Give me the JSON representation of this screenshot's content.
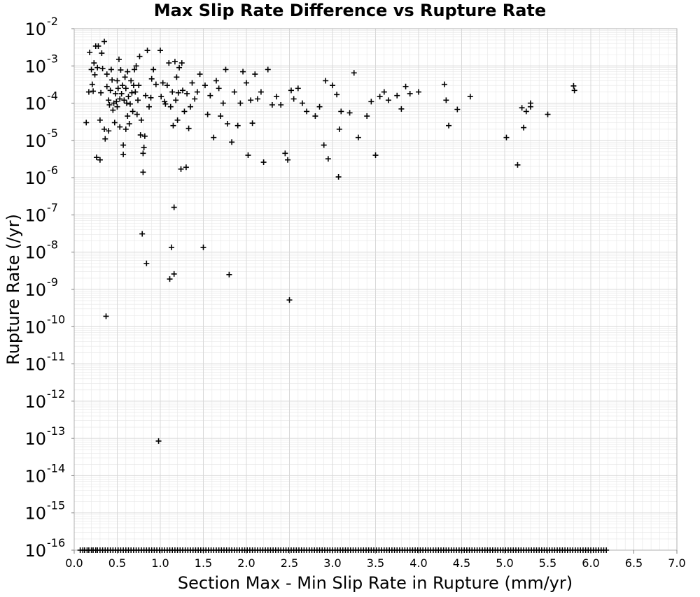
{
  "chart_data": {
    "type": "scatter",
    "title": "Max Slip Rate Difference vs Rupture Rate",
    "xlabel": "Section Max - Min Slip Rate in Rupture (mm/yr)",
    "ylabel": "Rupture Rate (/yr)",
    "x_scale": "linear",
    "y_scale": "log",
    "xlim": [
      0.0,
      7.0
    ],
    "ylim": [
      1e-16,
      0.01
    ],
    "x_ticks": [
      "0.0",
      "0.5",
      "1.0",
      "1.5",
      "2.0",
      "2.5",
      "3.0",
      "3.5",
      "4.0",
      "4.5",
      "5.0",
      "5.5",
      "6.0",
      "6.5",
      "7.0"
    ],
    "y_ticks": [
      {
        "base": "10",
        "exp": "-2"
      },
      {
        "base": "10",
        "exp": "-3"
      },
      {
        "base": "10",
        "exp": "-4"
      },
      {
        "base": "10",
        "exp": "-5"
      },
      {
        "base": "10",
        "exp": "-6"
      },
      {
        "base": "10",
        "exp": "-7"
      },
      {
        "base": "10",
        "exp": "-8"
      },
      {
        "base": "10",
        "exp": "-9"
      },
      {
        "base": "10",
        "exp": "-10"
      },
      {
        "base": "10",
        "exp": "-11"
      },
      {
        "base": "10",
        "exp": "-12"
      },
      {
        "base": "10",
        "exp": "-13"
      },
      {
        "base": "10",
        "exp": "-14"
      },
      {
        "base": "10",
        "exp": "-15"
      },
      {
        "base": "10",
        "exp": "-16"
      }
    ],
    "grid": true,
    "legend": "none",
    "marker": "plus",
    "marker_color": "#000000",
    "grid_color": "#e6e6e6",
    "points": [
      [
        0.14,
        3e-05
      ],
      [
        0.17,
        0.0002
      ],
      [
        0.18,
        0.0023
      ],
      [
        0.2,
        0.0008
      ],
      [
        0.21,
        0.00032
      ],
      [
        0.22,
        0.00021
      ],
      [
        0.23,
        0.0012
      ],
      [
        0.24,
        0.00058
      ],
      [
        0.25,
        0.0034
      ],
      [
        0.26,
        3.5e-06
      ],
      [
        0.27,
        0.0009
      ],
      [
        0.28,
        0.0034
      ],
      [
        0.3,
        3e-06
      ],
      [
        0.3,
        3.5e-05
      ],
      [
        0.31,
        0.00019
      ],
      [
        0.32,
        0.0022
      ],
      [
        0.33,
        0.00085
      ],
      [
        0.35,
        0.0045
      ],
      [
        0.35,
        2e-05
      ],
      [
        0.36,
        1.1e-05
      ],
      [
        0.37,
        1.9e-10
      ],
      [
        0.38,
        0.0006
      ],
      [
        0.38,
        0.00028
      ],
      [
        0.4,
        1.8e-05
      ],
      [
        0.4,
        0.00012
      ],
      [
        0.41,
        9e-05
      ],
      [
        0.42,
        0.00022
      ],
      [
        0.43,
        0.0008
      ],
      [
        0.44,
        0.00042
      ],
      [
        0.45,
        6.5e-05
      ],
      [
        0.46,
        0.0001
      ],
      [
        0.47,
        3e-05
      ],
      [
        0.48,
        0.00018
      ],
      [
        0.49,
        0.00011
      ],
      [
        0.5,
        0.0004
      ],
      [
        0.5,
        8e-05
      ],
      [
        0.51,
        0.00025
      ],
      [
        0.52,
        0.0015
      ],
      [
        0.53,
        0.00013
      ],
      [
        0.53,
        2.3e-05
      ],
      [
        0.54,
        0.00078
      ],
      [
        0.55,
        0.00018
      ],
      [
        0.56,
        0.0003
      ],
      [
        0.57,
        4.2e-06
      ],
      [
        0.57,
        7.5e-06
      ],
      [
        0.58,
        0.00012
      ],
      [
        0.59,
        0.0005
      ],
      [
        0.6,
        2e-05
      ],
      [
        0.6,
        0.00025
      ],
      [
        0.61,
        0.0001
      ],
      [
        0.62,
        4.5e-05
      ],
      [
        0.62,
        0.0007
      ],
      [
        0.63,
        0.00015
      ],
      [
        0.64,
        2.8e-05
      ],
      [
        0.65,
        9.5e-05
      ],
      [
        0.66,
        0.0004
      ],
      [
        0.67,
        0.00019
      ],
      [
        0.68,
        6e-05
      ],
      [
        0.69,
        0.0003
      ],
      [
        0.7,
        0.0008
      ],
      [
        0.71,
        0.0002
      ],
      [
        0.72,
        0.001
      ],
      [
        0.73,
        5e-05
      ],
      [
        0.74,
        0.00012
      ],
      [
        0.75,
        0.0003
      ],
      [
        0.76,
        0.0018
      ],
      [
        0.77,
        1.4e-05
      ],
      [
        0.78,
        3.5e-05
      ],
      [
        0.79,
        3.1e-08
      ],
      [
        0.8,
        1.4e-06
      ],
      [
        0.8,
        4.5e-06
      ],
      [
        0.81,
        6.5e-06
      ],
      [
        0.82,
        1.3e-05
      ],
      [
        0.83,
        0.00016
      ],
      [
        0.84,
        5e-09
      ],
      [
        0.85,
        0.0026
      ],
      [
        0.87,
        8e-05
      ],
      [
        0.89,
        0.00014
      ],
      [
        0.9,
        0.00045
      ],
      [
        0.92,
        0.0008
      ],
      [
        0.95,
        0.00032
      ],
      [
        0.98,
        8.5e-14
      ],
      [
        1.0,
        0.0026
      ],
      [
        1.01,
        0.00015
      ],
      [
        1.03,
        0.00035
      ],
      [
        1.05,
        0.00011
      ],
      [
        1.06,
        9.5e-05
      ],
      [
        1.08,
        0.0003
      ],
      [
        1.1,
        0.0012
      ],
      [
        1.11,
        1.9e-09
      ],
      [
        1.12,
        8e-05
      ],
      [
        1.13,
        1.35e-08
      ],
      [
        1.14,
        0.0002
      ],
      [
        1.15,
        2.5e-05
      ],
      [
        1.16,
        1.6e-07
      ],
      [
        1.16,
        2.6e-09
      ],
      [
        1.17,
        0.0013
      ],
      [
        1.18,
        0.00012
      ],
      [
        1.19,
        0.0005
      ],
      [
        1.2,
        3.5e-05
      ],
      [
        1.21,
        0.00019
      ],
      [
        1.22,
        0.0009
      ],
      [
        1.24,
        1.7e-06
      ],
      [
        1.25,
        0.0012
      ],
      [
        1.26,
        0.00022
      ],
      [
        1.28,
        6e-05
      ],
      [
        1.3,
        1.9e-06
      ],
      [
        1.31,
        0.00018
      ],
      [
        1.33,
        2.1e-05
      ],
      [
        1.35,
        8e-05
      ],
      [
        1.37,
        0.00035
      ],
      [
        1.4,
        0.00013
      ],
      [
        1.43,
        0.0002
      ],
      [
        1.46,
        0.0006
      ],
      [
        1.5,
        1.35e-08
      ],
      [
        1.52,
        0.0003
      ],
      [
        1.55,
        5e-05
      ],
      [
        1.58,
        0.00016
      ],
      [
        1.62,
        1.2e-05
      ],
      [
        1.65,
        0.0004
      ],
      [
        1.68,
        0.00025
      ],
      [
        1.7,
        4.5e-05
      ],
      [
        1.73,
        0.0001
      ],
      [
        1.76,
        0.0008
      ],
      [
        1.78,
        2.8e-05
      ],
      [
        1.8,
        2.5e-09
      ],
      [
        1.83,
        9e-06
      ],
      [
        1.86,
        0.0002
      ],
      [
        1.9,
        2.5e-05
      ],
      [
        1.93,
        0.0001
      ],
      [
        1.96,
        0.0007
      ],
      [
        2.0,
        0.00035
      ],
      [
        2.02,
        4e-06
      ],
      [
        2.05,
        0.00012
      ],
      [
        2.07,
        2.9e-05
      ],
      [
        2.1,
        0.0006
      ],
      [
        2.13,
        0.00013
      ],
      [
        2.17,
        0.0002
      ],
      [
        2.2,
        2.6e-06
      ],
      [
        2.25,
        0.0008
      ],
      [
        2.3,
        9e-05
      ],
      [
        2.35,
        0.00015
      ],
      [
        2.4,
        9e-05
      ],
      [
        2.45,
        4.5e-06
      ],
      [
        2.48,
        3e-06
      ],
      [
        2.5,
        5.2e-10
      ],
      [
        2.52,
        0.00022
      ],
      [
        2.55,
        0.00013
      ],
      [
        2.6,
        0.00025
      ],
      [
        2.65,
        0.0001
      ],
      [
        2.7,
        6e-05
      ],
      [
        2.8,
        4.5e-05
      ],
      [
        2.85,
        8e-05
      ],
      [
        2.9,
        7.5e-06
      ],
      [
        2.92,
        0.0004
      ],
      [
        2.95,
        3.2e-06
      ],
      [
        3.0,
        0.0003
      ],
      [
        3.05,
        0.00017
      ],
      [
        3.07,
        1.05e-06
      ],
      [
        3.08,
        2e-05
      ],
      [
        3.1,
        6e-05
      ],
      [
        3.2,
        5.5e-05
      ],
      [
        3.25,
        0.00065
      ],
      [
        3.3,
        1.2e-05
      ],
      [
        3.4,
        4.5e-05
      ],
      [
        3.45,
        0.00011
      ],
      [
        3.5,
        4e-06
      ],
      [
        3.55,
        0.00015
      ],
      [
        3.6,
        0.0002
      ],
      [
        3.65,
        0.00012
      ],
      [
        3.75,
        0.00016
      ],
      [
        3.8,
        7e-05
      ],
      [
        3.85,
        0.00028
      ],
      [
        3.9,
        0.00018
      ],
      [
        4.0,
        0.0002
      ],
      [
        4.3,
        0.00032
      ],
      [
        4.32,
        0.00012
      ],
      [
        4.35,
        2.5e-05
      ],
      [
        4.45,
        6.8e-05
      ],
      [
        4.6,
        0.00015
      ],
      [
        5.02,
        1.2e-05
      ],
      [
        5.15,
        2.2e-06
      ],
      [
        5.2,
        7.5e-05
      ],
      [
        5.22,
        2.2e-05
      ],
      [
        5.25,
        6e-05
      ],
      [
        5.3,
        8e-05
      ],
      [
        5.3,
        0.0001
      ],
      [
        5.5,
        5e-05
      ],
      [
        5.8,
        0.00029
      ],
      [
        5.81,
        0.00022
      ]
    ],
    "floor_points_x": [
      0.07,
      0.1,
      0.12,
      0.15,
      0.17,
      0.2,
      0.22,
      0.25,
      0.27,
      0.3,
      0.33,
      0.36,
      0.39,
      0.42,
      0.45,
      0.48,
      0.51,
      0.54,
      0.57,
      0.6,
      0.63,
      0.66,
      0.69,
      0.72,
      0.75,
      0.78,
      0.81,
      0.84,
      0.87,
      0.9,
      0.93,
      0.96,
      0.99,
      1.02,
      1.05,
      1.08,
      1.11,
      1.14,
      1.17,
      1.2,
      1.23,
      1.26,
      1.29,
      1.32,
      1.35,
      1.38,
      1.41,
      1.44,
      1.47,
      1.5,
      1.53,
      1.56,
      1.59,
      1.62,
      1.65,
      1.68,
      1.71,
      1.74,
      1.77,
      1.8,
      1.83,
      1.86,
      1.89,
      1.92,
      1.95,
      1.98,
      2.01,
      2.04,
      2.07,
      2.1,
      2.13,
      2.16,
      2.19,
      2.22,
      2.25,
      2.28,
      2.31,
      2.34,
      2.37,
      2.4,
      2.43,
      2.46,
      2.49,
      2.52,
      2.55,
      2.58,
      2.61,
      2.64,
      2.67,
      2.7,
      2.73,
      2.76,
      2.79,
      2.82,
      2.85,
      2.88,
      2.91,
      2.94,
      2.97,
      3.0,
      3.03,
      3.06,
      3.09,
      3.12,
      3.15,
      3.18,
      3.21,
      3.24,
      3.27,
      3.3,
      3.33,
      3.36,
      3.39,
      3.42,
      3.45,
      3.48,
      3.51,
      3.54,
      3.57,
      3.6,
      3.63,
      3.66,
      3.69,
      3.72,
      3.75,
      3.78,
      3.81,
      3.84,
      3.87,
      3.9,
      3.93,
      3.96,
      3.99,
      4.02,
      4.05,
      4.08,
      4.11,
      4.14,
      4.17,
      4.2,
      4.23,
      4.26,
      4.29,
      4.32,
      4.35,
      4.38,
      4.41,
      4.44,
      4.47,
      4.5,
      4.53,
      4.56,
      4.59,
      4.62,
      4.65,
      4.68,
      4.71,
      4.74,
      4.77,
      4.8,
      4.83,
      4.86,
      4.89,
      4.92,
      4.95,
      4.98,
      5.01,
      5.04,
      5.07,
      5.1,
      5.13,
      5.16,
      5.19,
      5.22,
      5.25,
      5.28,
      5.31,
      5.34,
      5.37,
      5.4,
      5.43,
      5.46,
      5.49,
      5.52,
      5.55,
      5.58,
      5.61,
      5.64,
      5.67,
      5.7,
      5.73,
      5.76,
      5.79,
      5.82,
      5.85,
      5.88,
      5.91,
      5.94,
      5.97,
      6.0,
      6.03,
      6.06,
      6.09,
      6.12,
      6.15,
      6.18
    ]
  }
}
